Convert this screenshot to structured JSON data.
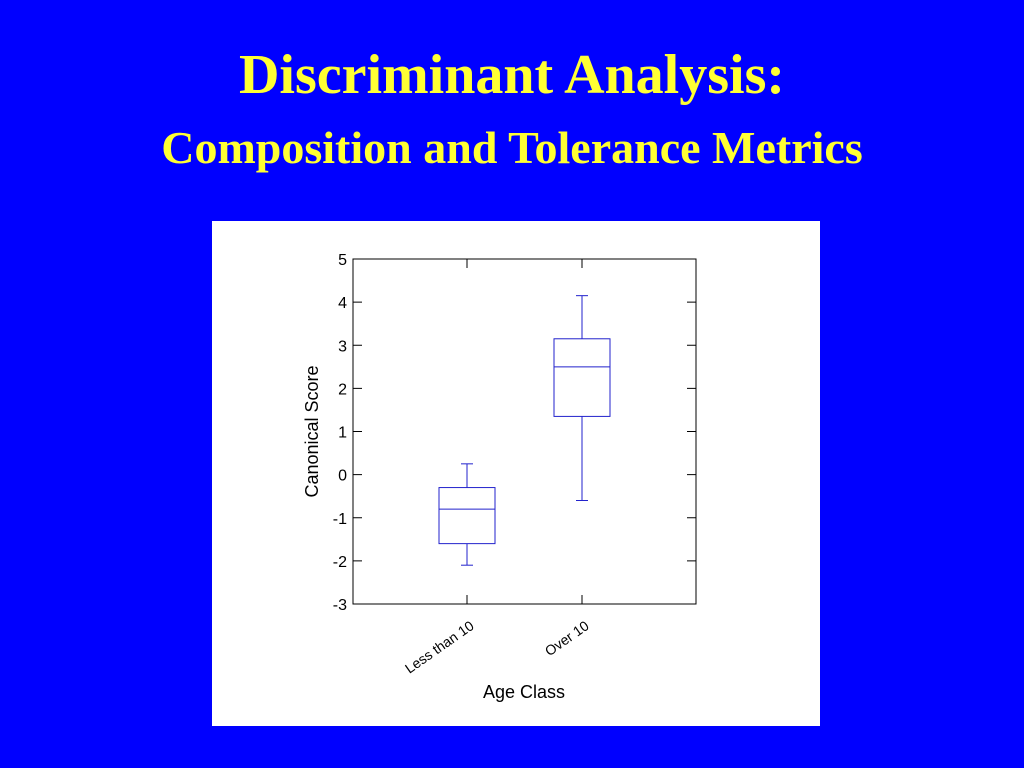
{
  "slide": {
    "title": "Discriminant Analysis:",
    "subtitle": "Composition and Tolerance Metrics",
    "background_color": "#0000FF",
    "title_color": "#FFFF33"
  },
  "chart_data": {
    "type": "box",
    "xlabel": "Age Class",
    "ylabel": "Canonical Score",
    "ylim": [
      -3,
      5
    ],
    "yticks": [
      -3,
      -2,
      -1,
      0,
      1,
      2,
      3,
      4,
      5
    ],
    "categories": [
      "Less than 10",
      "Over 10"
    ],
    "boxes": [
      {
        "category": "Less than 10",
        "whisker_low": -2.1,
        "q1": -1.6,
        "median": -0.8,
        "q3": -0.3,
        "whisker_high": 0.25
      },
      {
        "category": "Over 10",
        "whisker_low": -0.6,
        "q1": 1.35,
        "median": 2.5,
        "q3": 3.15,
        "whisker_high": 4.15
      }
    ],
    "box_color": "#2222CC",
    "grid": false,
    "legend": "none"
  }
}
